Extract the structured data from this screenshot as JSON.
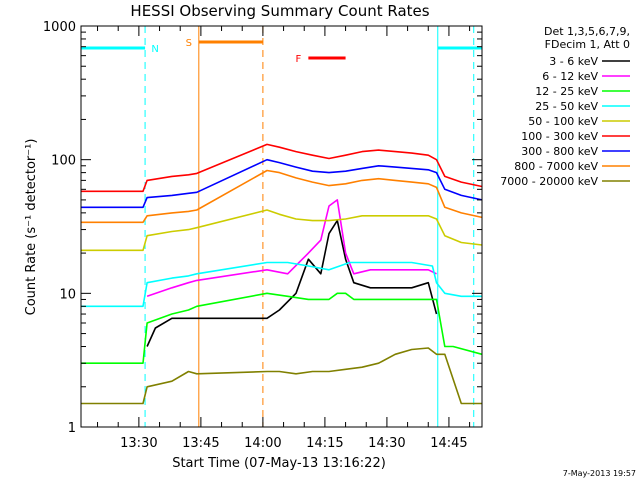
{
  "chart_data": {
    "type": "line",
    "title": "HESSI Observing Summary Count Rates",
    "xlabel": "Start Time (07-May-13 13:16:22)",
    "ylabel": "Count Rate (s⁻¹ detector⁻¹)",
    "y_scale": "log",
    "ylim": [
      1,
      1000
    ],
    "xlim_minutes_after_13_16": [
      0,
      97
    ],
    "x_ticks": [
      "13:30",
      "13:45",
      "14:00",
      "14:15",
      "14:30",
      "14:45"
    ],
    "y_ticks": [
      "1",
      "10",
      "100",
      "1000"
    ],
    "footer_date": "7-May-2013 19:57",
    "legend": {
      "placement": "right",
      "header_lines": [
        "Det 1,3,5,6,7,9,",
        "FDecim 1, Att 0"
      ],
      "entries": [
        {
          "label": "3 - 6 keV",
          "color": "#000000"
        },
        {
          "label": "6 - 12 keV",
          "color": "#ff00ff"
        },
        {
          "label": "12 - 25 keV",
          "color": "#00ff00"
        },
        {
          "label": "25 - 50 keV",
          "color": "#00ffff"
        },
        {
          "label": "50 - 100 keV",
          "color": "#cccc00"
        },
        {
          "label": "100 - 300 keV",
          "color": "#ff0000"
        },
        {
          "label": "300 - 800 keV",
          "color": "#0000ff"
        },
        {
          "label": "800 - 7000 keV",
          "color": "#ff8000"
        },
        {
          "label": "7000 - 20000 keV",
          "color": "#808000"
        }
      ]
    },
    "flags": [
      {
        "label": "N",
        "color": "#00ffff",
        "segments": [
          [
            0,
            15.5
          ],
          [
            86.3,
            97
          ]
        ]
      },
      {
        "label": "S",
        "color": "#ff8000",
        "segments": [
          [
            28.5,
            44
          ]
        ]
      },
      {
        "label": "F",
        "color": "#ff0000",
        "segments": [
          [
            55,
            64
          ]
        ]
      }
    ],
    "markers": [
      {
        "color": "#00ffff",
        "style": "dashed",
        "t": 15.5
      },
      {
        "color": "#ff8000",
        "style": "solid",
        "t": 28.5
      },
      {
        "color": "#ff8000",
        "style": "dashed",
        "t": 44
      },
      {
        "color": "#00ffff",
        "style": "solid",
        "t": 86.3
      },
      {
        "color": "#00ffff",
        "style": "dashed",
        "t": 95
      }
    ],
    "series": [
      {
        "name": "3 - 6 keV",
        "color": "#000000",
        "x": [
          13.5,
          16,
          18,
          22,
          26,
          45,
          48,
          52,
          55,
          58,
          60,
          62,
          64,
          66,
          70,
          75,
          80,
          84,
          86,
          88
        ],
        "y": [
          null,
          4,
          5.5,
          6.5,
          6.5,
          6.5,
          7.5,
          10,
          18,
          14,
          28,
          35,
          18,
          12,
          11,
          11,
          11,
          12,
          7,
          null
        ]
      },
      {
        "name": "6 - 12 keV",
        "color": "#ff00ff",
        "x": [
          0,
          13.5,
          16,
          22,
          26,
          28,
          45,
          50,
          55,
          58,
          60,
          62,
          64,
          66,
          70,
          75,
          80,
          84,
          86,
          88,
          97
        ],
        "y": [
          null,
          null,
          9.5,
          11,
          12,
          12.5,
          15,
          14,
          20,
          25,
          45,
          50,
          20,
          14,
          15,
          15,
          15,
          15,
          14,
          null,
          null
        ]
      },
      {
        "name": "12 - 25 keV",
        "color": "#00ff00",
        "x": [
          0,
          15,
          16,
          22,
          26,
          28,
          45,
          50,
          55,
          60,
          62,
          64,
          66,
          70,
          75,
          80,
          84,
          86,
          88,
          90,
          97
        ],
        "y": [
          3,
          3,
          6,
          7,
          7.5,
          8,
          10,
          9.5,
          9,
          9,
          10,
          10,
          9,
          9,
          9,
          9,
          9,
          9,
          4,
          4,
          3.5
        ]
      },
      {
        "name": "25 - 50 keV",
        "color": "#00ffff",
        "x": [
          0,
          15,
          16,
          22,
          26,
          28,
          45,
          50,
          55,
          60,
          65,
          70,
          75,
          80,
          85,
          86,
          88,
          92,
          97
        ],
        "y": [
          8,
          8,
          12,
          13,
          13.5,
          14,
          17,
          17,
          16,
          15,
          17,
          17,
          17,
          17,
          16,
          12,
          10,
          9.5,
          9.5
        ]
      },
      {
        "name": "50 - 100 keV",
        "color": "#cccc00",
        "x": [
          0,
          15,
          16,
          22,
          26,
          28,
          45,
          48,
          52,
          56,
          60,
          64,
          68,
          72,
          76,
          80,
          84,
          86,
          88,
          92,
          97
        ],
        "y": [
          21,
          21,
          27,
          29,
          30,
          31,
          42,
          39,
          36,
          35,
          35,
          36,
          38,
          38,
          38,
          38,
          38,
          36,
          27,
          24,
          23
        ]
      },
      {
        "name": "100 - 300 keV",
        "color": "#ff0000",
        "x": [
          0,
          15,
          16,
          22,
          26,
          28,
          45,
          48,
          52,
          56,
          60,
          64,
          68,
          72,
          76,
          80,
          84,
          86,
          88,
          92,
          97
        ],
        "y": [
          58,
          58,
          70,
          75,
          77,
          79,
          130,
          124,
          115,
          108,
          102,
          108,
          115,
          118,
          115,
          112,
          108,
          100,
          75,
          68,
          63
        ]
      },
      {
        "name": "300 - 800 keV",
        "color": "#0000ff",
        "x": [
          0,
          15,
          16,
          22,
          26,
          28,
          45,
          48,
          52,
          56,
          60,
          64,
          68,
          72,
          76,
          80,
          84,
          86,
          88,
          92,
          97
        ],
        "y": [
          44,
          44,
          52,
          54,
          56,
          57,
          100,
          95,
          88,
          82,
          80,
          82,
          86,
          90,
          88,
          86,
          84,
          80,
          60,
          54,
          50
        ]
      },
      {
        "name": "800 - 7000 keV",
        "color": "#ff8000",
        "x": [
          0,
          15,
          16,
          22,
          26,
          28,
          45,
          48,
          52,
          56,
          60,
          64,
          68,
          72,
          76,
          80,
          84,
          86,
          88,
          92,
          97
        ],
        "y": [
          34,
          34,
          38,
          40,
          41,
          42,
          83,
          80,
          73,
          68,
          64,
          66,
          70,
          72,
          70,
          68,
          66,
          62,
          44,
          40,
          37
        ]
      },
      {
        "name": "7000 - 20000 keV",
        "color": "#808000",
        "x": [
          0,
          15,
          16,
          22,
          26,
          28,
          45,
          48,
          52,
          56,
          60,
          64,
          68,
          72,
          76,
          80,
          84,
          86,
          88,
          92,
          97
        ],
        "y": [
          1.5,
          1.5,
          2,
          2.2,
          2.6,
          2.5,
          2.6,
          2.6,
          2.5,
          2.6,
          2.6,
          2.7,
          2.8,
          3,
          3.5,
          3.8,
          3.9,
          3.5,
          3.5,
          1.5,
          1.5
        ]
      }
    ]
  }
}
